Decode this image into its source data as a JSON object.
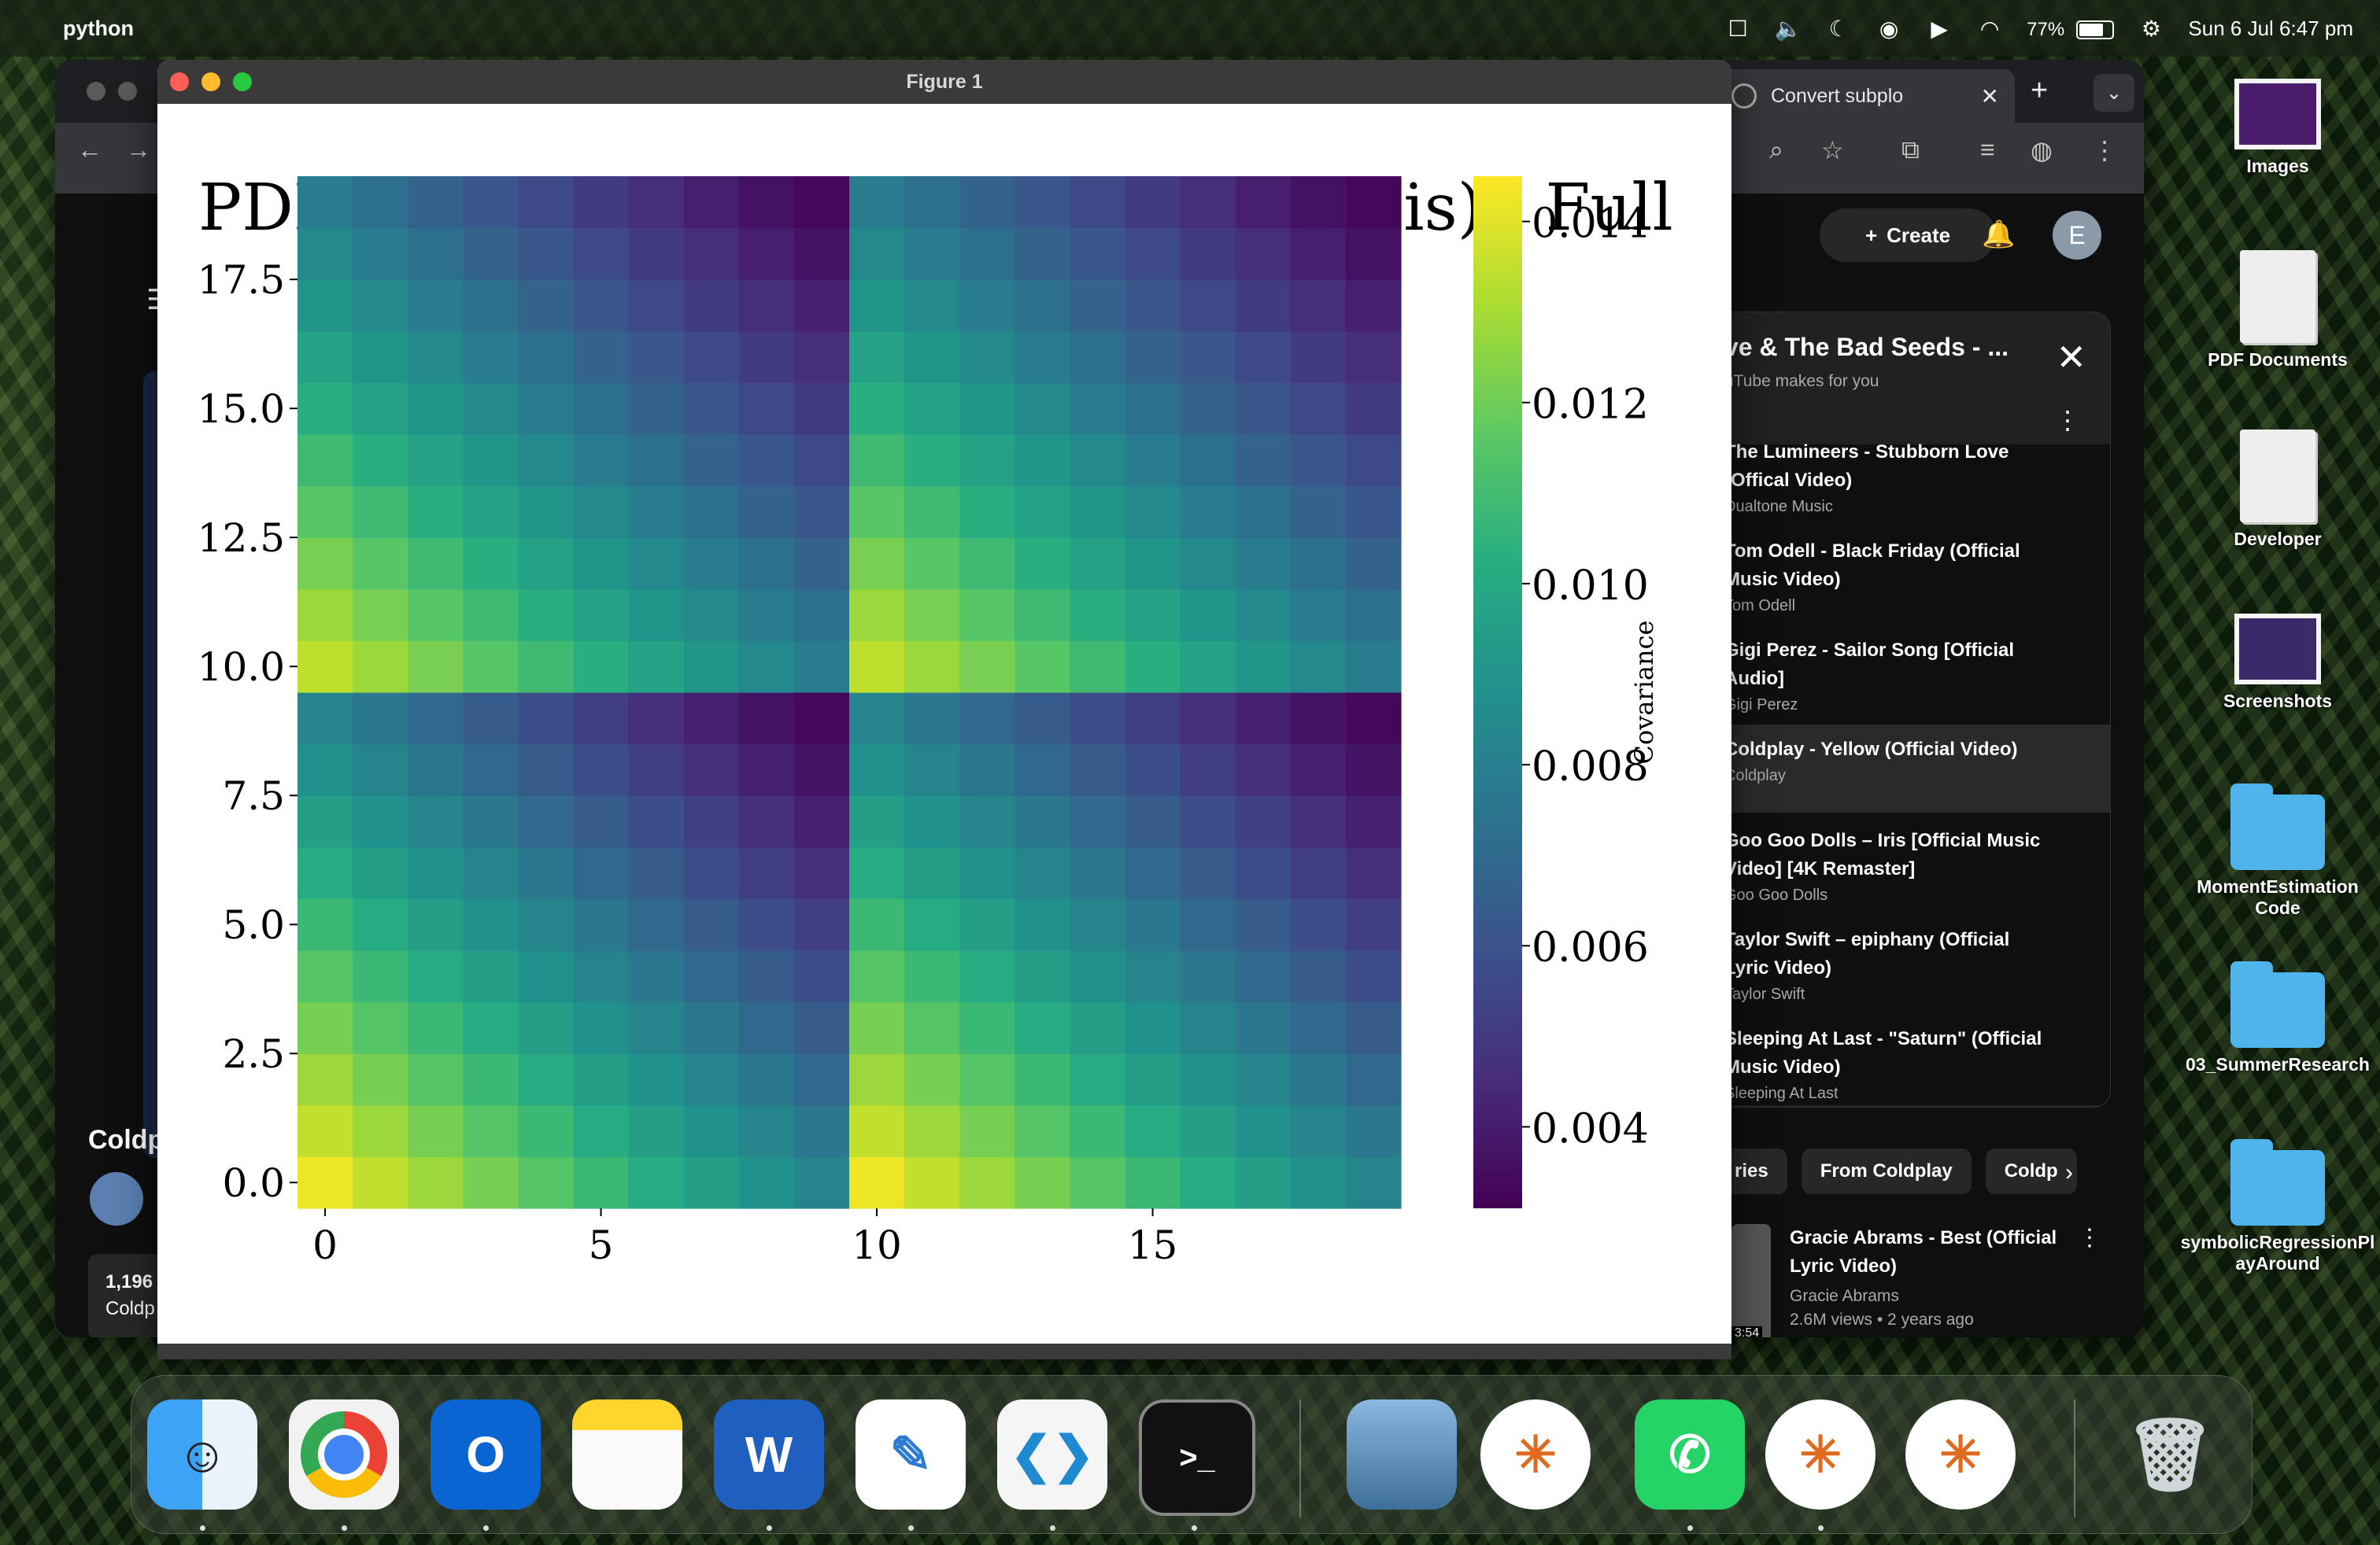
{
  "menubar": {
    "app_name": "python",
    "battery": "77%",
    "datetime": "Sun 6 Jul  6:47 pm"
  },
  "chrome": {
    "tab_title": "Convert subplo",
    "create_label": "Create",
    "avatar_letter": "E",
    "side_title": "Coldp",
    "side_count": "1,196",
    "side_channel": "Coldp",
    "mix": {
      "title": "ve & The Bad Seeds - ...",
      "subtitle": "uTube makes for you",
      "items": [
        {
          "title": "The Lumineers - Stubborn Love (Offical Video)",
          "channel": "Dualtone Music"
        },
        {
          "title": "Tom Odell - Black Friday (Official Music Video)",
          "channel": "Tom Odell"
        },
        {
          "title": "Gigi Perez - Sailor Song [Official Audio]",
          "channel": "Gigi Perez"
        },
        {
          "title": "Coldplay - Yellow (Official Video)",
          "channel": "Coldplay"
        },
        {
          "title": "Goo Goo Dolls – Iris [Official Music Video] [4K Remaster]",
          "channel": "Goo Goo Dolls"
        },
        {
          "title": "Taylor Swift – epiphany (Official Lyric Video)",
          "channel": "Taylor Swift"
        },
        {
          "title": "Sleeping At Last - \"Saturn\" (Official Music Video)",
          "channel": "Sleeping At Last"
        }
      ]
    },
    "chips": [
      "ries",
      "From Coldplay",
      "Coldp"
    ],
    "reco": {
      "title": "Gracie Abrams - Best (Official Lyric Video)",
      "channel": "Gracie Abrams",
      "meta": "2.6M views  • 2 years ago",
      "duration": "3:54"
    }
  },
  "figure": {
    "window_title": "Figure 1"
  },
  "chart_data": {
    "type": "heatmap",
    "title": "PDF Covariance Matrix (Flavour Basis) - Full",
    "colorbar_label": "Covariance",
    "colorbar_ticks": [
      "0.004",
      "0.006",
      "0.008",
      "0.010",
      "0.012",
      "0.014"
    ],
    "colorbar_range": [
      0.0031,
      0.0145
    ],
    "colormap": "viridis",
    "rows": 20,
    "cols": 20,
    "x_ticks": [
      0,
      5,
      10,
      15
    ],
    "y_ticks": [
      0.0,
      2.5,
      5.0,
      7.5,
      10.0,
      12.5,
      15.0,
      17.5
    ],
    "x_tick_labels": [
      "0",
      "5",
      "10",
      "15"
    ],
    "y_tick_labels": [
      "0.0",
      "2.5",
      "5.0",
      "7.5",
      "10.0",
      "12.5",
      "15.0",
      "17.5"
    ],
    "block_size": 10,
    "block_max": 0.0142,
    "block_min": 0.0033,
    "lower_half_weight": 1.0,
    "upper_half_weight": 0.93,
    "ylim": [
      0,
      20
    ],
    "xlim": [
      0,
      20
    ]
  },
  "desktop": {
    "items": [
      "Images",
      "PDF Documents",
      "Developer",
      "Screenshots",
      "MomentEstimation Code",
      "03_SummerResearch",
      "symbolicRegressionPlayAround"
    ]
  },
  "colors": {
    "menubar_bg": "#19231680",
    "chrome_bg": "#0f0f0f",
    "figure_titlebar": "#3a3a3a"
  }
}
